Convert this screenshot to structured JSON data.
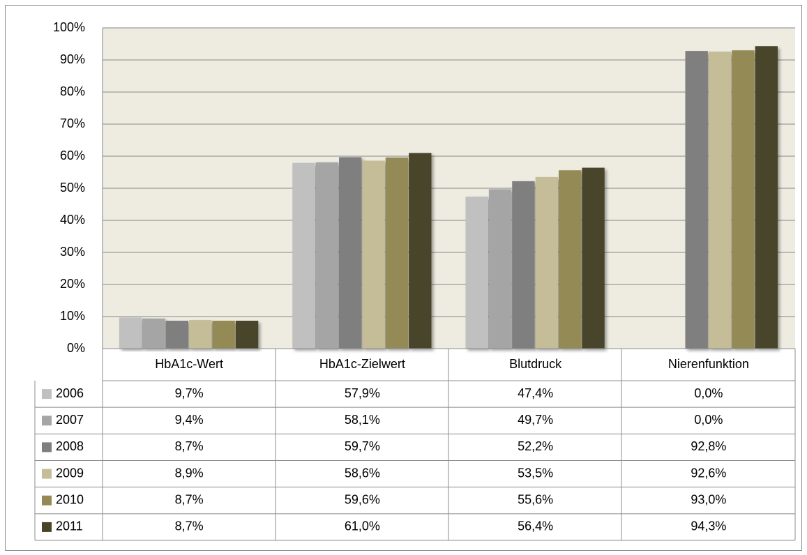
{
  "chart_data": {
    "type": "bar",
    "categories": [
      "HbA1c-Wert",
      "HbA1c-Zielwert",
      "Blutdruck",
      "Nierenfunktion"
    ],
    "series": [
      {
        "name": "2006",
        "color": "#c0c0c0",
        "values": [
          9.7,
          57.9,
          47.4,
          0.0
        ],
        "value_labels": [
          "9,7%",
          "57,9%",
          "47,4%",
          "0,0%"
        ]
      },
      {
        "name": "2007",
        "color": "#a5a5a5",
        "values": [
          9.4,
          58.1,
          49.7,
          0.0
        ],
        "value_labels": [
          "9,4%",
          "58,1%",
          "49,7%",
          "0,0%"
        ]
      },
      {
        "name": "2008",
        "color": "#7f7f7f",
        "values": [
          8.7,
          59.7,
          52.2,
          92.8
        ],
        "value_labels": [
          "8,7%",
          "59,7%",
          "52,2%",
          "92,8%"
        ]
      },
      {
        "name": "2009",
        "color": "#c4bd97",
        "values": [
          8.9,
          58.6,
          53.5,
          92.6
        ],
        "value_labels": [
          "8,9%",
          "58,6%",
          "53,5%",
          "92,6%"
        ]
      },
      {
        "name": "2010",
        "color": "#948a54",
        "values": [
          8.7,
          59.6,
          55.6,
          93.0
        ],
        "value_labels": [
          "8,7%",
          "59,6%",
          "55,6%",
          "93,0%"
        ]
      },
      {
        "name": "2011",
        "color": "#494429",
        "values": [
          8.7,
          61.0,
          56.4,
          94.3
        ],
        "value_labels": [
          "8,7%",
          "61,0%",
          "56,4%",
          "94,3%"
        ]
      }
    ],
    "ylim": [
      0,
      100
    ],
    "yticks": [
      {
        "value": 0,
        "label": "0%"
      },
      {
        "value": 10,
        "label": "10%"
      },
      {
        "value": 20,
        "label": "20%"
      },
      {
        "value": 30,
        "label": "30%"
      },
      {
        "value": 40,
        "label": "40%"
      },
      {
        "value": 50,
        "label": "50%"
      },
      {
        "value": 60,
        "label": "60%"
      },
      {
        "value": 70,
        "label": "70%"
      },
      {
        "value": 80,
        "label": "80%"
      },
      {
        "value": 90,
        "label": "90%"
      },
      {
        "value": 100,
        "label": "100%"
      }
    ],
    "grid": true,
    "plot_background": "#eeece1"
  }
}
